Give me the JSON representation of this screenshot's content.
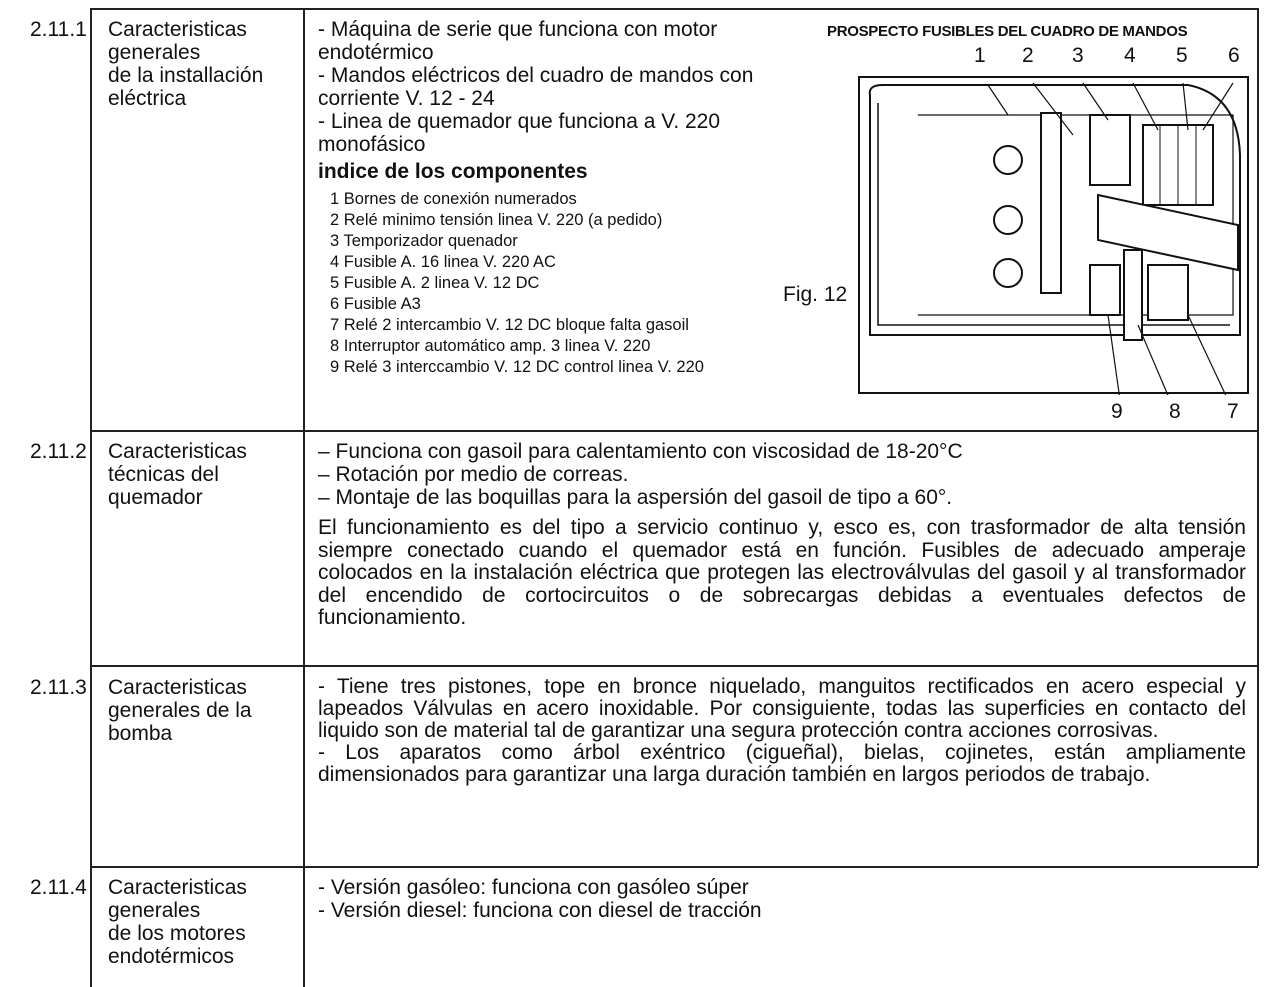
{
  "rows": [
    {
      "number": "2.11.1",
      "title": [
        "Caracteristicas",
        "generales",
        "de la installación",
        "eléctrica"
      ],
      "bullets": [
        "- Máquina de serie que funciona con motor endotérmico",
        "- Mandos eléctricos del cuadro de mandos con corriente V. 12 - 24",
        "- Linea de quemador que funciona a V. 220 monofásico"
      ],
      "index_title": "indice de los componentes",
      "index": [
        "1 Bornes de conexión numerados",
        "2 Relé minimo tensión linea V. 220 (a pedido)",
        "3 Temporizador quenador",
        "4 Fusible A. 16 linea V. 220 AC",
        "5 Fusible A. 2 linea V. 12 DC",
        "6 Fusible A3",
        "7 Relé 2 intercambio V. 12 DC bloque falta gasoil",
        "8 Interruptor automático amp. 3 linea V. 220",
        "9 Relé 3 interccambio V. 12 DC control linea V. 220"
      ],
      "figure": {
        "title": "PROSPECTO FUSIBLES DEL CUADRO DE MANDOS",
        "caption": "Fig. 12",
        "callouts_top": [
          "1",
          "2",
          "3",
          "4",
          "5",
          "6"
        ],
        "callouts_bottom": [
          "9",
          "8",
          "7"
        ]
      }
    },
    {
      "number": "2.11.2",
      "title": [
        "Caracteristicas",
        "técnicas del",
        "quemador"
      ],
      "bullets": [
        "– Funciona con gasoil para calentamiento con viscosidad de 18-20°C",
        "– Rotación por medio de correas.",
        "– Montaje de las boquillas para la aspersión del gasoil de tipo a 60°."
      ],
      "paragraph": "El funcionamiento es del tipo a servicio continuo y, esco es, con trasformador de alta tensión siempre conectado cuando el quemador está en función. Fusibles de adecuado amperaje colocados en la instalación eléctrica que protegen las electroválvulas del gasoil y al transformador del encendido de cortocircuitos o de sobrecargas debidas a eventuales defectos de funcionamiento."
    },
    {
      "number": "2.11.3",
      "title": [
        "Caracteristicas",
        "generales de la",
        "bomba"
      ],
      "bullets": [
        "- Tiene tres pistones, tope en bronce niquelado, manguitos rectificados en acero especial y lapeados Válvulas en acero inoxidable. Por consiguiente, todas las superficies en contacto del liquido son de material tal de garantizar una segura protección contra acciones corrosivas.",
        "- Los aparatos como árbol exéntrico (cigueñal), bielas, cojinetes, están ampliamente dimensionados para garantizar una larga duración también en largos periodos de trabajo."
      ]
    },
    {
      "number": "2.11.4",
      "title": [
        "Caracteristicas",
        "generales",
        "de los motores",
        "endotérmicos"
      ],
      "bullets": [
        "- Versión gasóleo: funciona con gasóleo súper",
        "- Versión diesel: funciona con diesel de tracción"
      ]
    }
  ]
}
